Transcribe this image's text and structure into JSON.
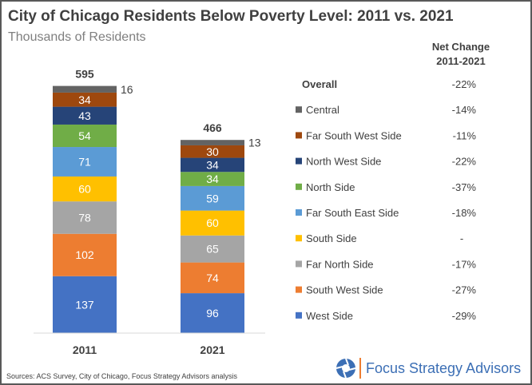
{
  "chart_data": {
    "type": "bar",
    "stacked": true,
    "title": "City of Chicago Residents Below Poverty Level: 2011 vs. 2021",
    "subtitle": "Thousands of Residents",
    "categories": [
      "2011",
      "2021"
    ],
    "totals": [
      595,
      466
    ],
    "series": [
      {
        "name": "West Side",
        "color": "#4472C4",
        "values": [
          137,
          96
        ],
        "net_change": "-29%"
      },
      {
        "name": "South West Side",
        "color": "#ED7D31",
        "values": [
          102,
          74
        ],
        "net_change": "-27%"
      },
      {
        "name": "Far North Side",
        "color": "#A5A5A5",
        "values": [
          78,
          65
        ],
        "net_change": "-17%"
      },
      {
        "name": "South Side",
        "color": "#FFC000",
        "values": [
          60,
          60
        ],
        "net_change": "-"
      },
      {
        "name": "Far South East Side",
        "color": "#5B9BD5",
        "values": [
          71,
          59
        ],
        "net_change": "-18%"
      },
      {
        "name": "North Side",
        "color": "#70AD47",
        "values": [
          54,
          34
        ],
        "net_change": "-37%"
      },
      {
        "name": "North West Side",
        "color": "#264478",
        "values": [
          43,
          34
        ],
        "net_change": "-22%"
      },
      {
        "name": "Far South West Side",
        "color": "#9E480E",
        "values": [
          34,
          30
        ],
        "net_change": "-11%"
      },
      {
        "name": "Central",
        "color": "#636363",
        "values": [
          16,
          13
        ],
        "net_change": "-14%"
      }
    ],
    "overall": {
      "label": "Overall",
      "net_change": "-22%"
    },
    "net_change_header": [
      "Net Change",
      "2011-2021"
    ],
    "legend_placement": "right",
    "grid": false
  },
  "footer": {
    "source": "Sources: ACS Survey, City of Chicago, Focus Strategy Advisors analysis",
    "logo": "Focus Strategy Advisors"
  }
}
